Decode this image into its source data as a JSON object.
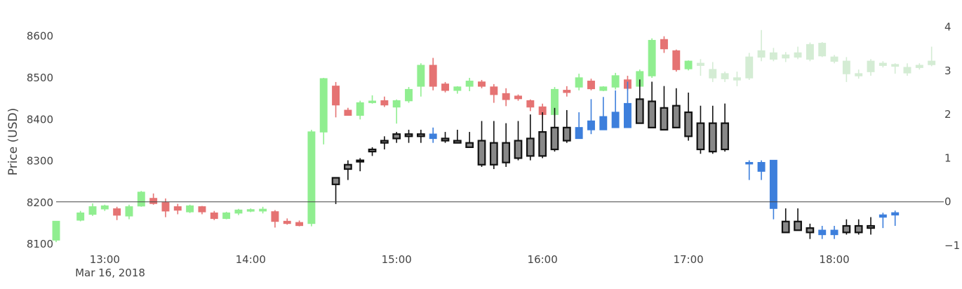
{
  "chart_data": {
    "type": "candlestick",
    "title": "",
    "ylabel": "Price (USD)",
    "xlabel": "",
    "y_left": {
      "range": [
        8080,
        8640
      ],
      "ticks": [
        "8100",
        "8200",
        "8300",
        "8400",
        "8500",
        "8600"
      ]
    },
    "y_right": {
      "range": [
        -1.16,
        4.17
      ],
      "ticks": [
        "−1",
        "0",
        "1",
        "2",
        "3",
        "4"
      ]
    },
    "x_ticks": [
      "13:00",
      "14:00",
      "15:00",
      "16:00",
      "17:00",
      "18:00"
    ],
    "x_date_label": "Mar 16, 2018",
    "zero_line": 0,
    "colors": {
      "up": "#90ee90",
      "down": "#e57373",
      "black": "#111111",
      "blue": "#3d7fdc",
      "faded": "#d4ecd4"
    },
    "series": [
      {
        "axis": "left",
        "candles": [
          [
            "12:40",
            8110,
            8155,
            8105,
            8155,
            "up"
          ],
          [
            "12:50",
            8158,
            8180,
            8155,
            8175,
            "up"
          ],
          [
            "12:55",
            8172,
            8198,
            8168,
            8190,
            "up"
          ],
          [
            "13:00",
            8185,
            8195,
            8180,
            8192,
            "up"
          ],
          [
            "13:05",
            8185,
            8190,
            8158,
            8170,
            "down"
          ],
          [
            "13:10",
            8168,
            8195,
            8160,
            8190,
            "up"
          ],
          [
            "13:15",
            8192,
            8228,
            8190,
            8225,
            "up"
          ],
          [
            "13:20",
            8210,
            8222,
            8195,
            8198,
            "down"
          ],
          [
            "13:25",
            8200,
            8210,
            8165,
            8180,
            "down"
          ],
          [
            "13:30",
            8190,
            8197,
            8172,
            8182,
            "down"
          ],
          [
            "13:35",
            8178,
            8195,
            8175,
            8192,
            "up"
          ],
          [
            "13:40",
            8190,
            8192,
            8172,
            8178,
            "down"
          ],
          [
            "13:45",
            8175,
            8180,
            8158,
            8162,
            "down"
          ],
          [
            "13:50",
            8162,
            8178,
            8160,
            8175,
            "up"
          ],
          [
            "13:55",
            8175,
            8185,
            8170,
            8182,
            "up"
          ],
          [
            "14:00",
            8180,
            8186,
            8177,
            8183,
            "up"
          ],
          [
            "14:05",
            8180,
            8190,
            8174,
            8184,
            "up"
          ],
          [
            "14:10",
            8178,
            8182,
            8140,
            8155,
            "down"
          ],
          [
            "14:15",
            8155,
            8162,
            8147,
            8150,
            "down"
          ],
          [
            "14:20",
            8152,
            8157,
            8143,
            8145,
            "down"
          ],
          [
            "14:25",
            8150,
            8375,
            8143,
            8370,
            "up"
          ],
          [
            "14:30",
            8370,
            8500,
            8340,
            8498,
            "up"
          ],
          [
            "14:35",
            8480,
            8490,
            8405,
            8435,
            "down"
          ],
          [
            "14:40",
            8422,
            8428,
            8410,
            8410,
            "down"
          ],
          [
            "14:45",
            8410,
            8445,
            8400,
            8440,
            "up"
          ],
          [
            "14:50",
            8442,
            8458,
            8438,
            8444,
            "up"
          ],
          [
            "14:55",
            8445,
            8455,
            8430,
            8435,
            "down"
          ],
          [
            "15:00",
            8430,
            8448,
            8390,
            8445,
            "up"
          ],
          [
            "15:05",
            8445,
            8478,
            8440,
            8472,
            "up"
          ],
          [
            "15:10",
            8480,
            8535,
            8455,
            8530,
            "up"
          ],
          [
            "15:15",
            8530,
            8548,
            8470,
            8480,
            "down"
          ],
          [
            "15:20",
            8485,
            8490,
            8465,
            8470,
            "down"
          ],
          [
            "15:25",
            8470,
            8480,
            8462,
            8478,
            "up"
          ],
          [
            "15:30",
            8480,
            8500,
            8468,
            8492,
            "up"
          ],
          [
            "15:35",
            8490,
            8495,
            8475,
            8480,
            "down"
          ],
          [
            "15:40",
            8478,
            8485,
            8440,
            8460,
            "down"
          ],
          [
            "15:45",
            8462,
            8475,
            8432,
            8448,
            "down"
          ],
          [
            "15:50",
            8456,
            8460,
            8445,
            8450,
            "down"
          ],
          [
            "15:55",
            8445,
            8448,
            8420,
            8430,
            "down"
          ],
          [
            "16:00",
            8430,
            8438,
            8402,
            8412,
            "down"
          ],
          [
            "16:05",
            8412,
            8478,
            8408,
            8472,
            "up"
          ],
          [
            "16:10",
            8465,
            8480,
            8455,
            8470,
            "down"
          ],
          [
            "16:15",
            8478,
            8510,
            8470,
            8500,
            "up"
          ],
          [
            "16:20",
            8492,
            8498,
            8470,
            8474,
            "down"
          ],
          [
            "16:25",
            8470,
            8480,
            8468,
            8478,
            "up"
          ],
          [
            "16:30",
            8478,
            8512,
            8472,
            8505,
            "up"
          ],
          [
            "16:35",
            8495,
            8505,
            8470,
            8475,
            "down"
          ],
          [
            "16:40",
            8480,
            8520,
            8478,
            8515,
            "up"
          ],
          [
            "16:45",
            8505,
            8595,
            8500,
            8590,
            "up"
          ],
          [
            "16:50",
            8592,
            8600,
            8560,
            8570,
            "down"
          ],
          [
            "16:55",
            8565,
            8568,
            8515,
            8520,
            "down"
          ],
          [
            "17:00",
            8522,
            8542,
            8518,
            8540,
            "up"
          ],
          [
            "17:05",
            8530,
            8545,
            8505,
            8535,
            "faded"
          ],
          [
            "17:10",
            8520,
            8538,
            8490,
            8500,
            "faded"
          ],
          [
            "17:15",
            8498,
            8515,
            8490,
            8510,
            "faded"
          ],
          [
            "17:20",
            8500,
            8515,
            8480,
            8495,
            "faded"
          ],
          [
            "17:25",
            8500,
            8560,
            8495,
            8550,
            "faded"
          ],
          [
            "17:30",
            8550,
            8615,
            8540,
            8565,
            "faded"
          ],
          [
            "17:35",
            8560,
            8572,
            8540,
            8545,
            "faded"
          ],
          [
            "17:40",
            8548,
            8562,
            8538,
            8555,
            "faded"
          ],
          [
            "17:45",
            8550,
            8575,
            8545,
            8560,
            "faded"
          ],
          [
            "17:50",
            8545,
            8585,
            8540,
            8580,
            "faded"
          ],
          [
            "17:55",
            8583,
            8586,
            8550,
            8553,
            "faded"
          ],
          [
            "18:00",
            8550,
            8555,
            8535,
            8540,
            "faded"
          ],
          [
            "18:05",
            8540,
            8550,
            8490,
            8510,
            "faded"
          ],
          [
            "18:10",
            8510,
            8520,
            8498,
            8505,
            "faded"
          ],
          [
            "18:15",
            8515,
            8545,
            8505,
            8540,
            "faded"
          ],
          [
            "18:20",
            8535,
            8540,
            8525,
            8530,
            "faded"
          ],
          [
            "18:25",
            8528,
            8535,
            8510,
            8532,
            "faded"
          ],
          [
            "18:30",
            8525,
            8535,
            8505,
            8512,
            "faded"
          ],
          [
            "18:35",
            8525,
            8535,
            8520,
            8530,
            "faded"
          ],
          [
            "18:40",
            8532,
            8575,
            8528,
            8540,
            "faded"
          ]
        ]
      },
      {
        "axis": "right",
        "candles": [
          [
            "14:35",
            0.4,
            0.55,
            -0.05,
            0.55,
            "black"
          ],
          [
            "14:40",
            0.75,
            0.95,
            0.5,
            0.85,
            "black"
          ],
          [
            "14:45",
            0.95,
            1.0,
            0.7,
            0.95,
            "black"
          ],
          [
            "14:50",
            1.15,
            1.25,
            1.05,
            1.2,
            "black"
          ],
          [
            "14:55",
            1.35,
            1.5,
            1.2,
            1.4,
            "black"
          ],
          [
            "15:00",
            1.45,
            1.6,
            1.35,
            1.55,
            "black"
          ],
          [
            "15:05",
            1.5,
            1.65,
            1.35,
            1.55,
            "black"
          ],
          [
            "15:10",
            1.5,
            1.65,
            1.35,
            1.55,
            "black"
          ],
          [
            "15:15",
            1.55,
            1.7,
            1.35,
            1.45,
            "blue"
          ],
          [
            "15:20",
            1.45,
            1.6,
            1.35,
            1.4,
            "black"
          ],
          [
            "15:25",
            1.4,
            1.65,
            1.35,
            1.35,
            "black"
          ],
          [
            "15:30",
            1.35,
            1.6,
            1.25,
            1.25,
            "black"
          ],
          [
            "15:35",
            1.4,
            1.85,
            0.8,
            0.85,
            "black"
          ],
          [
            "15:40",
            1.35,
            1.85,
            0.75,
            0.85,
            "black"
          ],
          [
            "15:45",
            1.35,
            1.8,
            0.8,
            0.9,
            "black"
          ],
          [
            "15:50",
            1.4,
            1.85,
            0.95,
            1.0,
            "black"
          ],
          [
            "15:55",
            1.45,
            2.0,
            0.95,
            1.05,
            "black"
          ],
          [
            "16:00",
            1.6,
            2.05,
            1.0,
            1.05,
            "black"
          ],
          [
            "16:05",
            1.7,
            2.15,
            1.15,
            1.2,
            "black"
          ],
          [
            "16:10",
            1.7,
            2.1,
            1.35,
            1.4,
            "black"
          ],
          [
            "16:15",
            1.7,
            2.05,
            1.45,
            1.45,
            "blue"
          ],
          [
            "16:20",
            1.85,
            2.35,
            1.55,
            1.65,
            "blue"
          ],
          [
            "16:25",
            1.95,
            2.4,
            1.65,
            1.65,
            "blue"
          ],
          [
            "16:30",
            2.05,
            2.55,
            1.7,
            1.7,
            "blue"
          ],
          [
            "16:35",
            2.25,
            2.75,
            1.7,
            1.7,
            "blue"
          ],
          [
            "16:40",
            2.35,
            2.8,
            1.8,
            1.8,
            "black"
          ],
          [
            "16:45",
            2.3,
            2.75,
            1.7,
            1.7,
            "black"
          ],
          [
            "16:50",
            2.15,
            2.65,
            1.65,
            1.65,
            "black"
          ],
          [
            "16:55",
            2.2,
            2.6,
            1.7,
            1.7,
            "black"
          ],
          [
            "17:00",
            2.05,
            2.5,
            1.4,
            1.5,
            "black"
          ],
          [
            "17:05",
            1.8,
            2.2,
            1.1,
            1.2,
            "black"
          ],
          [
            "17:10",
            1.8,
            2.2,
            1.1,
            1.15,
            "black"
          ],
          [
            "17:15",
            1.8,
            2.25,
            1.15,
            1.2,
            "black"
          ],
          [
            "17:25",
            0.9,
            0.95,
            0.5,
            0.9,
            "blue"
          ],
          [
            "17:30",
            0.9,
            0.95,
            0.5,
            0.7,
            "blue"
          ],
          [
            "17:35",
            0.95,
            0.95,
            -0.4,
            -0.15,
            "blue"
          ],
          [
            "17:40",
            -0.45,
            -0.15,
            -0.65,
            -0.7,
            "black"
          ],
          [
            "17:45",
            -0.45,
            -0.15,
            -0.65,
            -0.65,
            "black"
          ],
          [
            "17:50",
            -0.6,
            -0.5,
            -0.85,
            -0.7,
            "black"
          ],
          [
            "17:55",
            -0.65,
            -0.55,
            -0.85,
            -0.75,
            "blue"
          ],
          [
            "18:00",
            -0.65,
            -0.55,
            -0.85,
            -0.75,
            "blue"
          ],
          [
            "18:05",
            -0.55,
            -0.4,
            -0.75,
            -0.7,
            "black"
          ],
          [
            "18:10",
            -0.55,
            -0.4,
            -0.75,
            -0.7,
            "black"
          ],
          [
            "18:15",
            -0.55,
            -0.35,
            -0.75,
            -0.6,
            "black"
          ],
          [
            "18:20",
            -0.3,
            -0.25,
            -0.6,
            -0.35,
            "blue"
          ],
          [
            "18:25",
            -0.25,
            -0.2,
            -0.55,
            -0.3,
            "blue"
          ]
        ]
      }
    ]
  }
}
